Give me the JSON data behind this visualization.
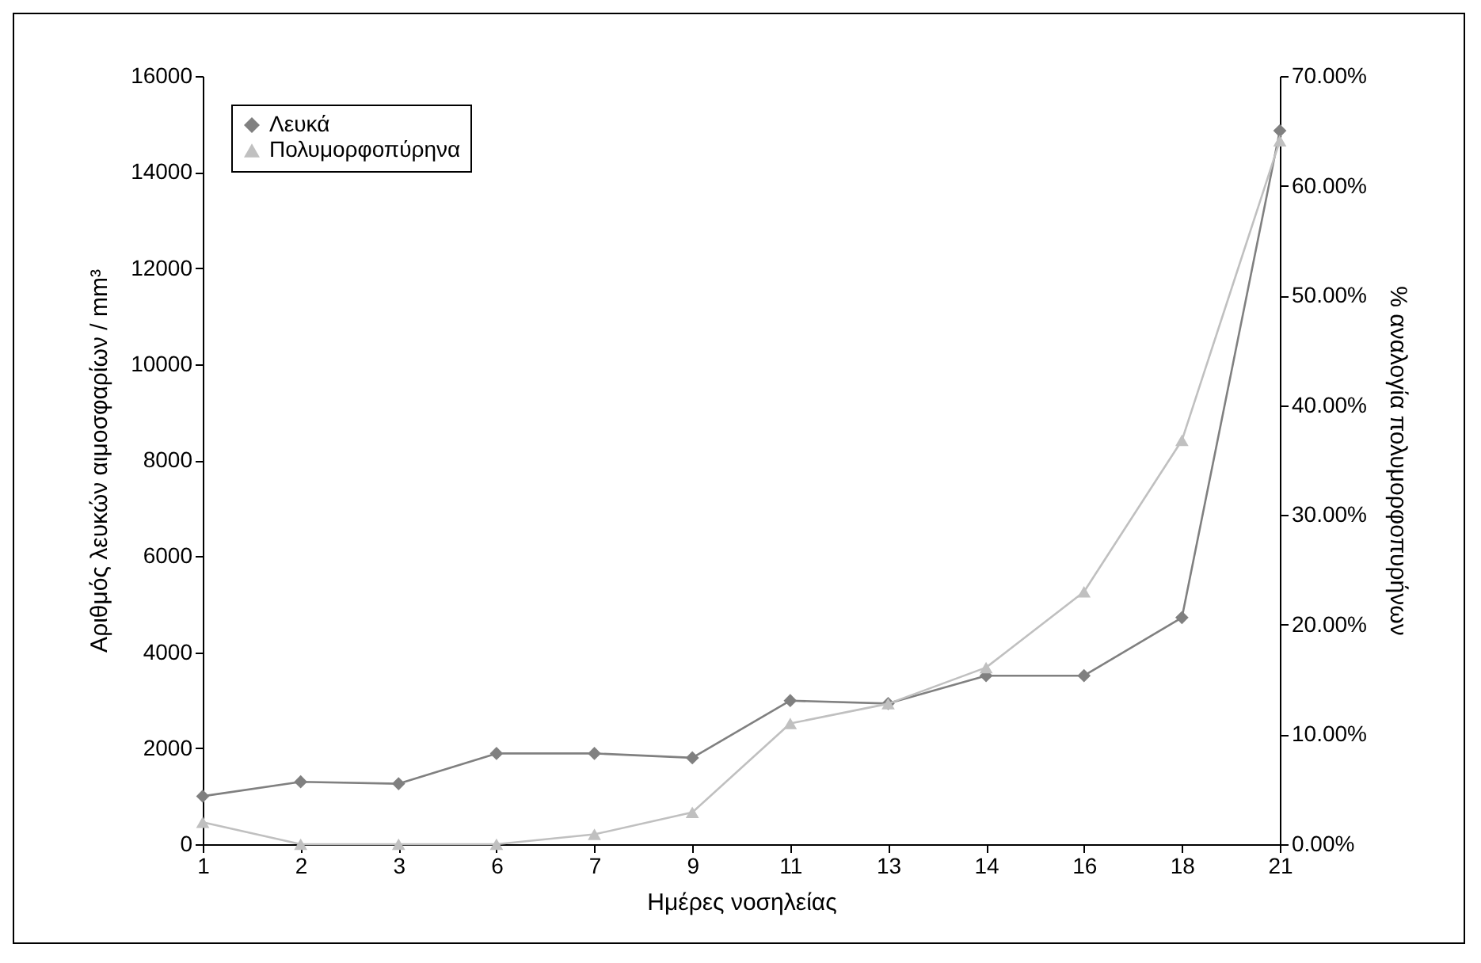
{
  "chart_data": {
    "type": "line",
    "xlabel": "Ημέρες νοσηλείας",
    "ylabel": "Αριθμός λευκών αιμοσφαρίων / mm³",
    "y2label": "% αναλογία πολυμορφοπυρήνων",
    "categories": [
      "1",
      "2",
      "3",
      "6",
      "7",
      "9",
      "11",
      "13",
      "14",
      "16",
      "18",
      "21"
    ],
    "series": [
      {
        "name": "Λευκά",
        "color": "#808080",
        "marker": "diamond",
        "values": [
          1000,
          1300,
          1260,
          1890,
          1890,
          1800,
          2990,
          2930,
          3510,
          3510,
          4720,
          14860
        ]
      },
      {
        "name": "Πολυμορφοπύρηνα",
        "color": "#c0c0c0",
        "marker": "triangle",
        "axis": "y2",
        "values": [
          2.0,
          0,
          0,
          0,
          0.9,
          2.9,
          11.0,
          12.8,
          16.1,
          23.0,
          36.8,
          64.1
        ]
      }
    ],
    "ylim": [
      0,
      16000
    ],
    "yticks": [
      0,
      2000,
      4000,
      6000,
      8000,
      10000,
      12000,
      14000,
      16000
    ],
    "y2lim": [
      0,
      70
    ],
    "y2ticks": [
      {
        "value": 0,
        "label": "0.00%"
      },
      {
        "value": 10,
        "label": "10.00%"
      },
      {
        "value": 20,
        "label": "20.00%"
      },
      {
        "value": 30,
        "label": "30.00%"
      },
      {
        "value": 40,
        "label": "40.00%"
      },
      {
        "value": 50,
        "label": "50.00%"
      },
      {
        "value": 60,
        "label": "60.00%"
      },
      {
        "value": 70,
        "label": "70.00%"
      }
    ],
    "grid": false,
    "legend": "top left",
    "line_style": "solid"
  }
}
